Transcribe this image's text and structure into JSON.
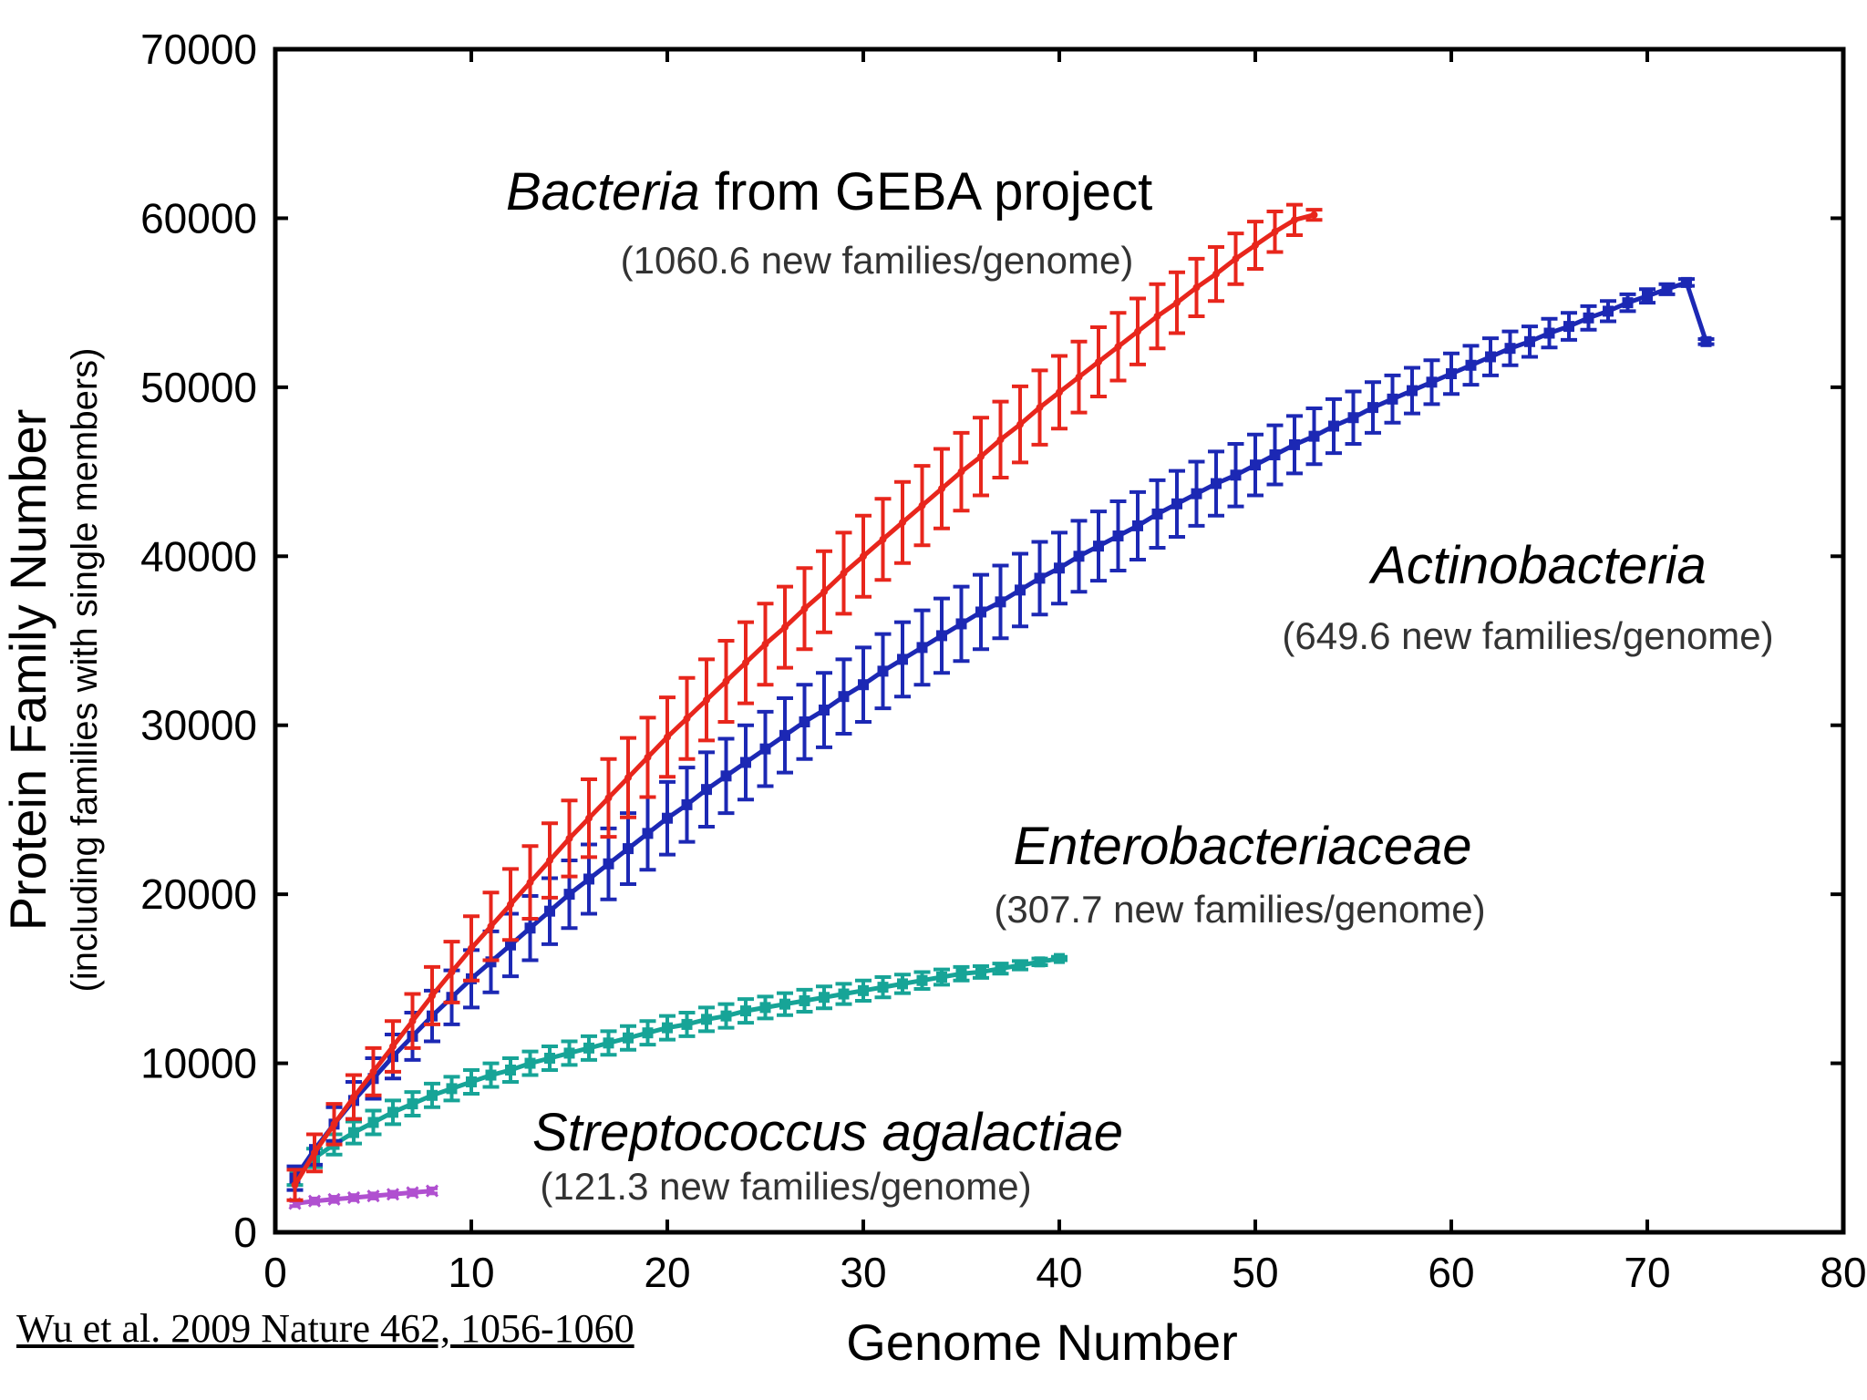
{
  "citation": "Wu et al. 2009 Nature 462, 1056-1060",
  "chart_data": {
    "type": "line",
    "title": "",
    "xlabel": "Genome Number",
    "ylabel": "Protein Family Number",
    "ylabel_sub": "(including families with single members)",
    "xlim": [
      0,
      80
    ],
    "ylim": [
      0,
      70000
    ],
    "xticks": [
      0,
      10,
      20,
      30,
      40,
      50,
      60,
      70,
      80
    ],
    "yticks": [
      0,
      10000,
      20000,
      30000,
      40000,
      50000,
      60000,
      70000
    ],
    "grid": false,
    "series": [
      {
        "name": "Bacteria from GEBA project",
        "name_italic": "Bacteria",
        "name_rest": " from GEBA project",
        "rate_label": "(1060.6 new families/genome)",
        "color": "#e8261c",
        "marker": "cross",
        "x": [
          1,
          2,
          3,
          4,
          5,
          6,
          7,
          8,
          9,
          10,
          11,
          12,
          13,
          14,
          15,
          16,
          17,
          18,
          19,
          20,
          21,
          22,
          23,
          24,
          25,
          26,
          27,
          28,
          29,
          30,
          31,
          32,
          33,
          34,
          35,
          36,
          37,
          38,
          39,
          40,
          41,
          42,
          43,
          44,
          45,
          46,
          47,
          48,
          49,
          50,
          51,
          52,
          53
        ],
        "y": [
          2800,
          4700,
          6400,
          8000,
          9500,
          11000,
          12500,
          14000,
          15400,
          16800,
          18100,
          19400,
          20700,
          22000,
          23300,
          24500,
          25700,
          26900,
          28100,
          29300,
          30400,
          31500,
          32600,
          33700,
          34800,
          35800,
          36900,
          37900,
          39000,
          40000,
          41000,
          42000,
          43000,
          44000,
          45000,
          45900,
          46900,
          47800,
          48800,
          49700,
          50600,
          51500,
          52400,
          53300,
          54200,
          55000,
          55900,
          56700,
          57600,
          58400,
          59200,
          59900,
          60200
        ],
        "err": [
          900,
          1100,
          1200,
          1300,
          1400,
          1500,
          1600,
          1700,
          1800,
          1900,
          2000,
          2100,
          2150,
          2200,
          2250,
          2300,
          2300,
          2350,
          2350,
          2350,
          2400,
          2400,
          2400,
          2400,
          2400,
          2400,
          2400,
          2400,
          2400,
          2400,
          2400,
          2400,
          2350,
          2350,
          2300,
          2300,
          2250,
          2250,
          2200,
          2150,
          2100,
          2050,
          2000,
          1950,
          1900,
          1800,
          1700,
          1600,
          1500,
          1400,
          1200,
          900,
          300
        ]
      },
      {
        "name": "Actinobacteria",
        "name_italic": "Actinobacteria",
        "name_rest": "",
        "rate_label": "(649.6 new families/genome)",
        "color": "#1c28b4",
        "marker": "square",
        "x": [
          1,
          2,
          3,
          4,
          5,
          6,
          7,
          8,
          9,
          10,
          11,
          12,
          13,
          14,
          15,
          16,
          17,
          18,
          19,
          20,
          21,
          22,
          23,
          24,
          25,
          26,
          27,
          28,
          29,
          30,
          31,
          32,
          33,
          34,
          35,
          36,
          37,
          38,
          39,
          40,
          41,
          42,
          43,
          44,
          45,
          46,
          47,
          48,
          49,
          50,
          51,
          52,
          53,
          54,
          55,
          56,
          57,
          58,
          59,
          60,
          61,
          62,
          63,
          64,
          65,
          66,
          67,
          68,
          69,
          70,
          71,
          72,
          73
        ],
        "y": [
          3200,
          4900,
          6400,
          7800,
          9100,
          10400,
          11600,
          12800,
          13900,
          15000,
          16000,
          17000,
          18000,
          19000,
          20000,
          20900,
          21800,
          22700,
          23600,
          24500,
          25300,
          26200,
          27000,
          27800,
          28600,
          29400,
          30200,
          30900,
          31700,
          32400,
          33200,
          33900,
          34600,
          35300,
          36000,
          36700,
          37300,
          38000,
          38700,
          39300,
          40000,
          40600,
          41200,
          41800,
          42500,
          43100,
          43700,
          44300,
          44800,
          45400,
          46000,
          46600,
          47100,
          47700,
          48200,
          48800,
          49300,
          49800,
          50300,
          50800,
          51300,
          51800,
          52300,
          52700,
          53200,
          53600,
          54100,
          54500,
          55000,
          55400,
          55800,
          56200,
          52700
        ],
        "err": [
          700,
          900,
          1000,
          1100,
          1200,
          1300,
          1400,
          1500,
          1600,
          1700,
          1800,
          1850,
          1900,
          1950,
          2000,
          2050,
          2100,
          2100,
          2150,
          2150,
          2200,
          2200,
          2200,
          2200,
          2200,
          2200,
          2200,
          2200,
          2200,
          2200,
          2200,
          2200,
          2200,
          2200,
          2200,
          2200,
          2150,
          2150,
          2150,
          2100,
          2100,
          2050,
          2050,
          2000,
          2000,
          1950,
          1900,
          1900,
          1850,
          1800,
          1750,
          1700,
          1650,
          1600,
          1550,
          1500,
          1400,
          1350,
          1300,
          1200,
          1150,
          1100,
          1000,
          900,
          850,
          800,
          700,
          600,
          500,
          400,
          300,
          200,
          150
        ]
      },
      {
        "name": "Enterobacteriaceae",
        "name_italic": "Enterobacteriaceae",
        "name_rest": "",
        "rate_label": "(307.7 new families/genome)",
        "color": "#17a497",
        "marker": "square",
        "x": [
          1,
          2,
          3,
          4,
          5,
          6,
          7,
          8,
          9,
          10,
          11,
          12,
          13,
          14,
          15,
          16,
          17,
          18,
          19,
          20,
          21,
          22,
          23,
          24,
          25,
          26,
          27,
          28,
          29,
          30,
          31,
          32,
          33,
          34,
          35,
          36,
          37,
          38,
          39,
          40
        ],
        "y": [
          3300,
          4400,
          5200,
          5900,
          6500,
          7100,
          7600,
          8100,
          8500,
          8900,
          9300,
          9600,
          10000,
          10300,
          10600,
          10900,
          11200,
          11500,
          11800,
          12100,
          12300,
          12600,
          12800,
          13100,
          13300,
          13500,
          13700,
          13900,
          14100,
          14300,
          14500,
          14700,
          14900,
          15100,
          15300,
          15400,
          15600,
          15800,
          16000,
          16200
        ],
        "err": [
          500,
          550,
          600,
          650,
          700,
          700,
          700,
          700,
          700,
          700,
          700,
          700,
          700,
          700,
          700,
          700,
          700,
          700,
          700,
          700,
          700,
          700,
          700,
          700,
          650,
          650,
          650,
          650,
          600,
          600,
          600,
          550,
          500,
          450,
          400,
          350,
          300,
          250,
          200,
          100
        ]
      },
      {
        "name": "Streptococcus agalactiae",
        "name_italic": "Streptococcus agalactiae",
        "name_rest": "",
        "rate_label": "(121.3 new families/genome)",
        "color": "#b050d0",
        "marker": "x",
        "x": [
          1,
          2,
          3,
          4,
          5,
          6,
          7,
          8
        ],
        "y": [
          1700,
          1850,
          1950,
          2050,
          2150,
          2250,
          2350,
          2450
        ],
        "err": [
          150,
          150,
          150,
          150,
          150,
          150,
          150,
          150
        ]
      }
    ]
  }
}
